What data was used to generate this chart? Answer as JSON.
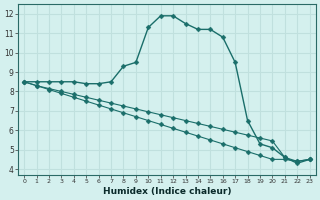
{
  "xlabel": "Humidex (Indice chaleur)",
  "bg_color": "#d4f0ee",
  "grid_color": "#c0e0de",
  "line_color": "#1a6e6a",
  "xlim": [
    -0.5,
    23.5
  ],
  "ylim": [
    3.7,
    12.5
  ],
  "yticks": [
    4,
    5,
    6,
    7,
    8,
    9,
    10,
    11,
    12
  ],
  "xticks": [
    0,
    1,
    2,
    3,
    4,
    5,
    6,
    7,
    8,
    9,
    10,
    11,
    12,
    13,
    14,
    15,
    16,
    17,
    18,
    19,
    20,
    21,
    22,
    23
  ],
  "main_x": [
    0,
    1,
    2,
    3,
    4,
    5,
    6,
    7,
    8,
    9,
    10,
    11,
    12,
    13,
    14,
    15,
    16,
    17,
    18,
    19,
    20,
    21,
    22,
    23
  ],
  "main_y": [
    8.5,
    8.5,
    8.5,
    8.5,
    8.5,
    8.4,
    8.4,
    8.5,
    9.3,
    9.5,
    11.3,
    11.9,
    11.9,
    11.5,
    11.2,
    11.2,
    10.8,
    9.5,
    6.5,
    5.3,
    5.1,
    4.6,
    4.3,
    4.5
  ],
  "diag1_x": [
    0,
    1,
    2,
    3,
    4,
    5,
    6,
    7,
    8,
    9,
    10,
    11,
    12,
    13,
    14,
    15,
    16,
    17,
    18,
    19,
    20,
    21,
    22,
    23
  ],
  "diag1_y": [
    8.5,
    8.3,
    8.1,
    7.9,
    7.7,
    7.5,
    7.3,
    7.1,
    6.9,
    6.7,
    6.5,
    6.3,
    6.1,
    5.9,
    5.7,
    5.5,
    5.3,
    5.1,
    4.9,
    4.7,
    4.5,
    4.5,
    4.4,
    4.5
  ],
  "diag2_x": [
    0,
    1,
    2,
    3,
    4,
    5,
    6,
    7,
    8,
    9,
    10,
    11,
    12,
    13,
    14,
    15,
    16,
    17,
    18,
    19,
    20,
    21,
    22,
    23
  ],
  "diag2_y": [
    8.5,
    8.3,
    8.15,
    8.0,
    7.85,
    7.7,
    7.55,
    7.4,
    7.25,
    7.1,
    6.95,
    6.8,
    6.65,
    6.5,
    6.35,
    6.2,
    6.05,
    5.9,
    5.75,
    5.6,
    5.45,
    4.6,
    4.4,
    4.5
  ],
  "markersize": 2.5
}
